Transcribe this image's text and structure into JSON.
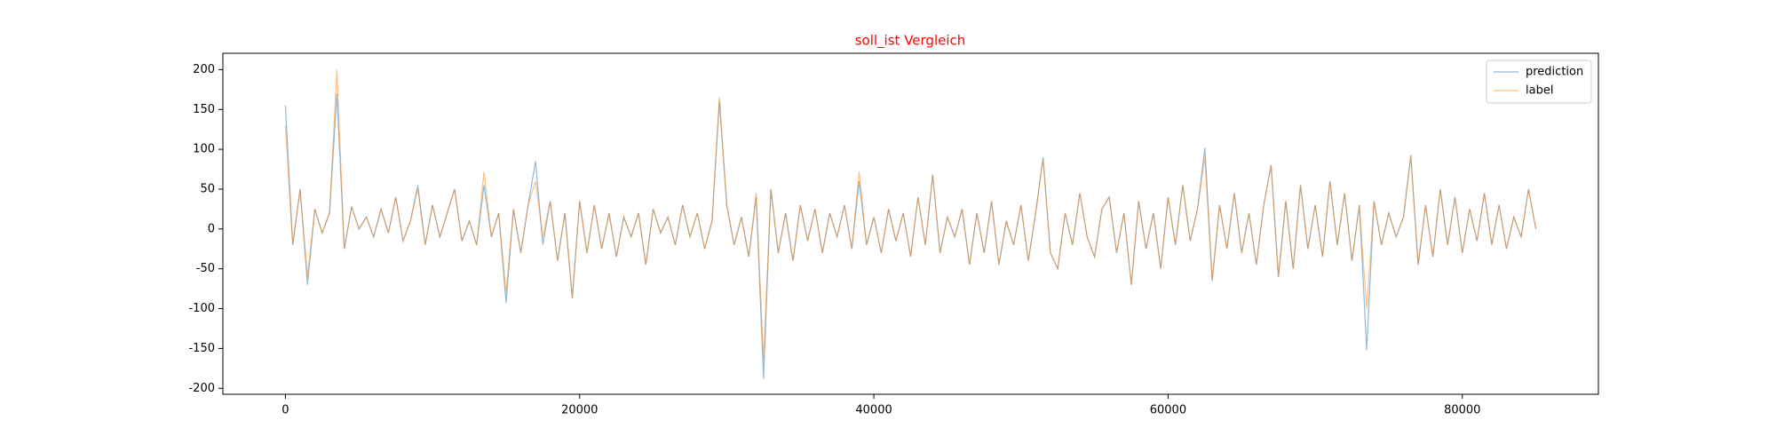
{
  "chart_data": {
    "type": "line",
    "title": "soll_ist Vergleich",
    "title_color": "#ff0000",
    "x": [
      0,
      500,
      1000,
      1500,
      2000,
      2500,
      3000,
      3500,
      4000,
      4500,
      5000,
      5500,
      6000,
      6500,
      7000,
      7500,
      8000,
      8500,
      9000,
      9500,
      10000,
      10500,
      11000,
      11500,
      12000,
      12500,
      13000,
      13500,
      14000,
      14500,
      15000,
      15500,
      16000,
      16500,
      17000,
      17500,
      18000,
      18500,
      19000,
      19500,
      20000,
      20500,
      21000,
      21500,
      22000,
      22500,
      23000,
      23500,
      24000,
      24500,
      25000,
      25500,
      26000,
      26500,
      27000,
      27500,
      28000,
      28500,
      29000,
      29500,
      30000,
      30500,
      31000,
      31500,
      32000,
      32500,
      33000,
      33500,
      34000,
      34500,
      35000,
      35500,
      36000,
      36500,
      37000,
      37500,
      38000,
      38500,
      39000,
      39500,
      40000,
      40500,
      41000,
      41500,
      42000,
      42500,
      43000,
      43500,
      44000,
      44500,
      45000,
      45500,
      46000,
      46500,
      47000,
      47500,
      48000,
      48500,
      49000,
      49500,
      50000,
      50500,
      51000,
      51500,
      52000,
      52500,
      53000,
      53500,
      54000,
      54500,
      55000,
      55500,
      56000,
      56500,
      57000,
      57500,
      58000,
      58500,
      59000,
      59500,
      60000,
      60500,
      61000,
      61500,
      62000,
      62500,
      63000,
      63500,
      64000,
      64500,
      65000,
      65500,
      66000,
      66500,
      67000,
      67500,
      68000,
      68500,
      69000,
      69500,
      70000,
      70500,
      71000,
      71500,
      72000,
      72500,
      73000,
      73500,
      74000,
      74500,
      75000,
      75500,
      76000,
      76500,
      77000,
      77500,
      78000,
      78500,
      79000,
      79500,
      80000,
      80500,
      81000,
      81500,
      82000,
      82500,
      83000,
      83500,
      84000,
      84500,
      85000
    ],
    "series": [
      {
        "name": "prediction",
        "color": "#1f77b4",
        "values": [
          155,
          -20,
          50,
          -70,
          25,
          -5,
          20,
          170,
          -25,
          28,
          0,
          15,
          -10,
          25,
          -5,
          40,
          -15,
          10,
          55,
          -20,
          30,
          -10,
          20,
          50,
          -15,
          10,
          -20,
          55,
          -10,
          20,
          -93,
          25,
          -30,
          30,
          85,
          -20,
          35,
          -40,
          20,
          -87,
          35,
          -30,
          30,
          -25,
          20,
          -35,
          15,
          -10,
          20,
          -45,
          25,
          -5,
          15,
          -20,
          30,
          -10,
          20,
          -25,
          10,
          160,
          30,
          -20,
          15,
          -35,
          40,
          -188,
          50,
          -30,
          20,
          -40,
          30,
          -15,
          25,
          -30,
          20,
          -10,
          30,
          -25,
          60,
          -20,
          15,
          -30,
          25,
          -15,
          20,
          -35,
          40,
          -20,
          68,
          -30,
          15,
          -10,
          25,
          -45,
          20,
          -30,
          35,
          -45,
          10,
          -20,
          30,
          -40,
          20,
          90,
          -30,
          -50,
          20,
          -20,
          45,
          -10,
          -35,
          25,
          40,
          -30,
          20,
          -70,
          35,
          -25,
          20,
          -50,
          40,
          -20,
          55,
          -15,
          25,
          102,
          -65,
          30,
          -25,
          45,
          -30,
          20,
          -45,
          30,
          80,
          -60,
          35,
          -50,
          55,
          -25,
          30,
          -35,
          60,
          -20,
          45,
          -40,
          30,
          -152,
          35,
          -20,
          20,
          -10,
          15,
          93,
          -45,
          30,
          -35,
          50,
          -20,
          40,
          -30,
          25,
          -15,
          45,
          -20,
          30,
          -25,
          15,
          -10,
          50,
          0
        ]
      },
      {
        "name": "label",
        "color": "#ff7f0e",
        "values": [
          130,
          -20,
          50,
          -60,
          25,
          -5,
          20,
          200,
          -25,
          28,
          0,
          15,
          -10,
          25,
          -5,
          40,
          -15,
          10,
          50,
          -20,
          30,
          -10,
          20,
          50,
          -15,
          10,
          -20,
          72,
          -10,
          20,
          -80,
          25,
          -30,
          30,
          60,
          -10,
          35,
          -40,
          20,
          -87,
          35,
          -30,
          30,
          -25,
          20,
          -35,
          15,
          -10,
          20,
          -45,
          25,
          -5,
          15,
          -20,
          30,
          -10,
          20,
          -25,
          10,
          165,
          30,
          -20,
          15,
          -35,
          45,
          -165,
          50,
          -30,
          20,
          -40,
          30,
          -15,
          25,
          -30,
          20,
          -10,
          30,
          -25,
          72,
          -20,
          15,
          -30,
          25,
          -15,
          20,
          -35,
          40,
          -20,
          68,
          -30,
          15,
          -10,
          25,
          -45,
          20,
          -30,
          35,
          -45,
          10,
          -20,
          30,
          -40,
          20,
          88,
          -30,
          -50,
          20,
          -20,
          45,
          -10,
          -35,
          25,
          40,
          -30,
          20,
          -70,
          35,
          -25,
          20,
          -50,
          40,
          -20,
          55,
          -15,
          25,
          90,
          -65,
          30,
          -25,
          45,
          -30,
          20,
          -45,
          30,
          80,
          -60,
          35,
          -50,
          55,
          -25,
          30,
          -35,
          60,
          -20,
          45,
          -40,
          30,
          -100,
          35,
          -20,
          20,
          -10,
          15,
          90,
          -45,
          30,
          -35,
          50,
          -20,
          40,
          -30,
          25,
          -15,
          45,
          -20,
          30,
          -25,
          15,
          -10,
          50,
          0
        ]
      }
    ],
    "xlim": [
      -4250,
      89250
    ],
    "xticks": [
      0,
      20000,
      40000,
      60000,
      80000
    ],
    "ylim": [
      -207.5,
      220.5
    ],
    "yticks": [
      -200,
      -150,
      -100,
      -50,
      0,
      50,
      100,
      150,
      200
    ],
    "legend": "upper right",
    "grid": false
  }
}
